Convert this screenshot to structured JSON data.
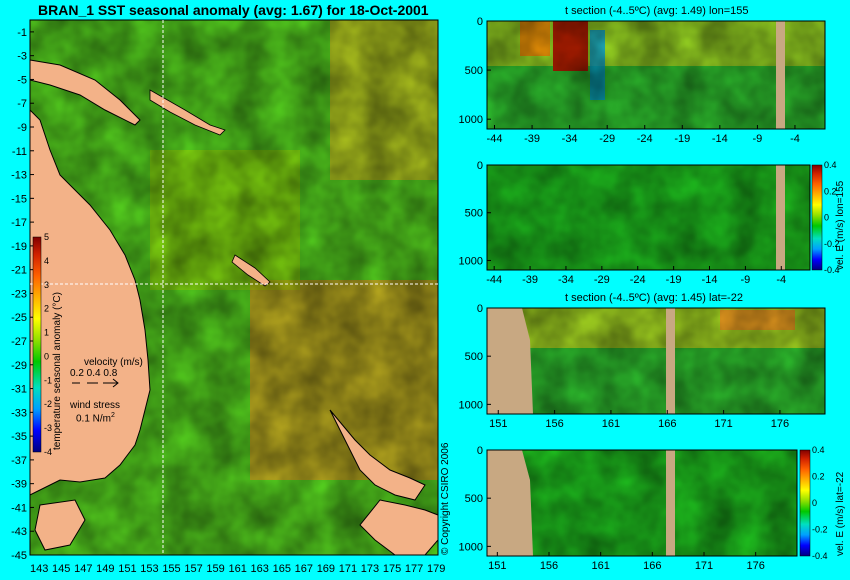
{
  "colors": {
    "background": "#00ffff",
    "land": "#f3b288",
    "bathymetry_mask": "#c8a882",
    "colormap": [
      "#000080",
      "#0000ff",
      "#00a0ff",
      "#00e0c0",
      "#00c800",
      "#90e000",
      "#ffff00",
      "#ffb000",
      "#ff6000",
      "#d02000",
      "#800000"
    ]
  },
  "chart_data": [
    {
      "id": "map",
      "type": "heatmap",
      "title": "BRAN_1  SST seasonal anomaly (avg: 1.67) for 18-Oct-2001",
      "x_ticks": [
        "143",
        "145",
        "147",
        "149",
        "151",
        "153",
        "155",
        "157",
        "159",
        "161",
        "163",
        "165",
        "167",
        "169",
        "171",
        "173",
        "175",
        "177",
        "179"
      ],
      "y_ticks": [
        "-1",
        "-3",
        "-5",
        "-7",
        "-9",
        "-11",
        "-13",
        "-15",
        "-17",
        "-19",
        "-21",
        "-23",
        "-25",
        "-27",
        "-29",
        "-31",
        "-33",
        "-35",
        "-37",
        "-39",
        "-41",
        "-43",
        "-45"
      ],
      "xlim": [
        143,
        180
      ],
      "ylim": [
        -45,
        0
      ],
      "crosshair": {
        "lon": 155,
        "lat": -22
      },
      "colorbar": {
        "label": "temperature seasonal anomaly (°C)",
        "ticks": [
          "5",
          "4",
          "3",
          "2",
          "1",
          "0",
          "-1",
          "-2",
          "-3",
          "-4"
        ],
        "range": [
          -4,
          5
        ]
      },
      "legend": {
        "velocity_label": "velocity (m/s)",
        "velocity_values": "0.2 0.4 0.8",
        "wind_label": "wind stress",
        "wind_value": "0.1 N/m",
        "wind_exp": "2"
      },
      "copyright": "© Copyright CSIRO 2006"
    },
    {
      "id": "section1",
      "type": "heatmap",
      "title": "t section (-4..5ºC) (avg: 1.49) lon=155",
      "x_ticks": [
        "-44",
        "-39",
        "-34",
        "-29",
        "-24",
        "-19",
        "-14",
        "-9",
        "-4"
      ],
      "y_ticks": [
        "0",
        "500",
        "1000"
      ],
      "xlim": [
        -45,
        0
      ],
      "ylim": [
        0,
        1100
      ]
    },
    {
      "id": "section2",
      "type": "heatmap",
      "title": "",
      "x_ticks": [
        "-44",
        "-39",
        "-34",
        "-29",
        "-24",
        "-19",
        "-14",
        "-9",
        "-4"
      ],
      "y_ticks": [
        "0",
        "500",
        "1000"
      ],
      "xlim": [
        -45,
        0
      ],
      "ylim": [
        0,
        1100
      ],
      "colorbar": {
        "label": "vel. E (m/s) lon=155",
        "ticks": [
          "0.4",
          "0.2",
          "0",
          "-0.2",
          "-0.4"
        ],
        "range": [
          -0.4,
          0.4
        ]
      }
    },
    {
      "id": "section3",
      "type": "heatmap",
      "title": "t section (-4..5ºC) (avg: 1.45) lat=-22",
      "x_ticks": [
        "151",
        "156",
        "161",
        "166",
        "171",
        "176"
      ],
      "y_ticks": [
        "0",
        "500",
        "1000"
      ],
      "xlim": [
        150,
        180
      ],
      "ylim": [
        0,
        1100
      ]
    },
    {
      "id": "section4",
      "type": "heatmap",
      "title": "",
      "x_ticks": [
        "151",
        "156",
        "161",
        "166",
        "171",
        "176"
      ],
      "y_ticks": [
        "0",
        "500",
        "1000"
      ],
      "xlim": [
        150,
        180
      ],
      "ylim": [
        0,
        1100
      ],
      "colorbar": {
        "label": "vel. E (m/s) lat=-22",
        "ticks": [
          "0.4",
          "0.2",
          "0",
          "-0.2",
          "-0.4"
        ],
        "range": [
          -0.4,
          0.4
        ]
      }
    }
  ]
}
